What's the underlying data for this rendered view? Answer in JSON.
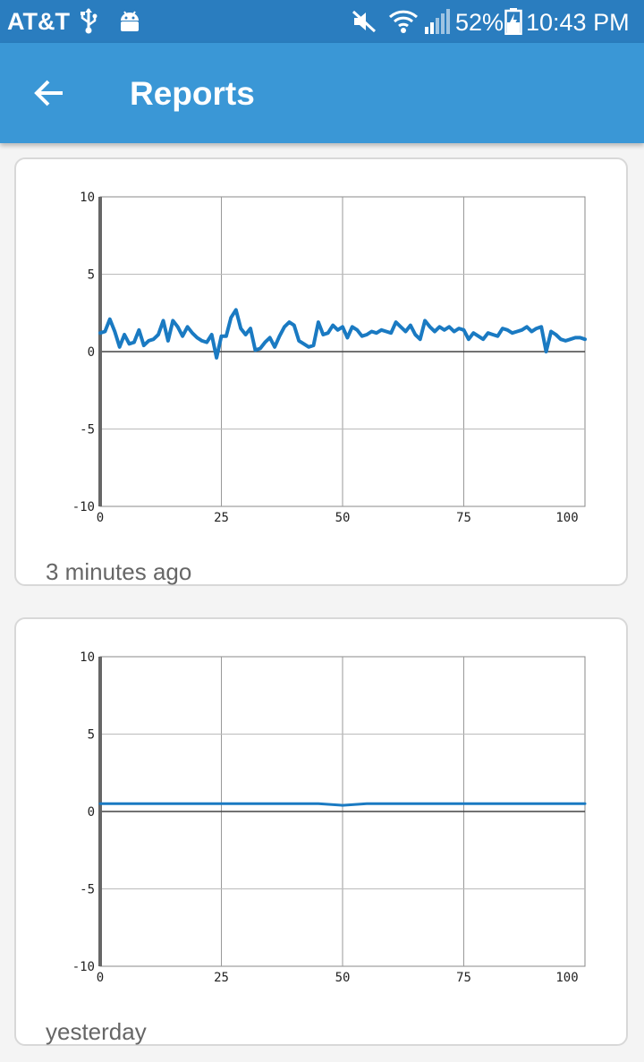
{
  "status_bar": {
    "carrier": "AT&T",
    "battery_percent": "52%",
    "time": "10:43 PM",
    "icons": [
      "usb-icon",
      "android-icon",
      "mute-icon",
      "wifi-icon",
      "signal-icon",
      "battery-charging-icon"
    ]
  },
  "app_bar": {
    "title": "Reports",
    "back_icon": "arrow-left-icon"
  },
  "reports": [
    {
      "caption": "3 minutes ago"
    },
    {
      "caption": "yesterday"
    }
  ],
  "chart_data": [
    {
      "type": "line",
      "xlim": [
        0,
        100
      ],
      "ylim": [
        -10,
        10
      ],
      "x_ticks": [
        "0",
        "25",
        "50",
        "75",
        "100"
      ],
      "y_ticks": [
        "10",
        "5",
        "0",
        "-5",
        "-10"
      ],
      "grid": true,
      "color": "#1a7ac2",
      "series": [
        {
          "x": [
            0,
            1,
            2,
            3,
            4,
            5,
            6,
            7,
            8,
            9,
            10,
            11,
            12,
            13,
            14,
            15,
            16,
            17,
            18,
            19,
            20,
            21,
            22,
            23,
            24,
            25,
            26,
            27,
            28,
            29,
            30,
            31,
            32,
            33,
            34,
            35,
            36,
            37,
            38,
            39,
            40,
            41,
            42,
            43,
            44,
            45,
            46,
            47,
            48,
            49,
            50,
            51,
            52,
            53,
            54,
            55,
            56,
            57,
            58,
            59,
            60,
            61,
            62,
            63,
            64,
            65,
            66,
            67,
            68,
            69,
            70,
            71,
            72,
            73,
            74,
            75,
            76,
            77,
            78,
            79,
            80,
            81,
            82,
            83,
            84,
            85,
            86,
            87,
            88,
            89,
            90,
            91,
            92,
            93,
            94,
            95,
            96,
            97,
            98,
            99,
            100
          ],
          "y": [
            1.2,
            1.3,
            2.1,
            1.3,
            0.3,
            1.1,
            0.5,
            0.6,
            1.4,
            0.4,
            0.7,
            0.8,
            1.1,
            2.0,
            0.7,
            2.0,
            1.6,
            1.0,
            1.6,
            1.2,
            0.9,
            0.7,
            0.6,
            1.1,
            -0.4,
            1.0,
            1.0,
            2.2,
            2.7,
            1.5,
            1.1,
            1.5,
            0.1,
            0.2,
            0.6,
            0.9,
            0.3,
            1.0,
            1.6,
            1.9,
            1.7,
            0.7,
            0.5,
            0.3,
            0.4,
            1.9,
            1.1,
            1.2,
            1.7,
            1.4,
            1.6,
            0.9,
            1.6,
            1.4,
            1.0,
            1.1,
            1.3,
            1.2,
            1.4,
            1.3,
            1.2,
            1.9,
            1.6,
            1.3,
            1.7,
            1.1,
            0.8,
            2.0,
            1.6,
            1.3,
            1.6,
            1.4,
            1.6,
            1.3,
            1.5,
            1.4,
            0.8,
            1.2,
            1.0,
            0.8,
            1.2,
            1.1,
            1.0,
            1.5,
            1.4,
            1.2,
            1.3,
            1.4,
            1.6,
            1.3,
            1.5,
            1.6,
            0.0,
            1.3,
            1.1,
            0.8,
            0.7,
            0.8,
            0.9,
            0.9,
            0.8
          ]
        }
      ]
    },
    {
      "type": "line",
      "xlim": [
        0,
        100
      ],
      "ylim": [
        -10,
        10
      ],
      "x_ticks": [
        "0",
        "25",
        "50",
        "75",
        "100"
      ],
      "y_ticks": [
        "10",
        "5",
        "0",
        "-5",
        "-10"
      ],
      "grid": true,
      "color": "#1a7ac2",
      "series": [
        {
          "x": [
            0,
            5,
            10,
            15,
            20,
            25,
            30,
            35,
            40,
            45,
            50,
            55,
            60,
            65,
            70,
            75,
            80,
            85,
            90,
            95,
            100
          ],
          "y": [
            0.5,
            0.5,
            0.5,
            0.5,
            0.5,
            0.5,
            0.5,
            0.5,
            0.5,
            0.5,
            0.4,
            0.5,
            0.5,
            0.5,
            0.5,
            0.5,
            0.5,
            0.5,
            0.5,
            0.5,
            0.5
          ]
        }
      ]
    }
  ]
}
